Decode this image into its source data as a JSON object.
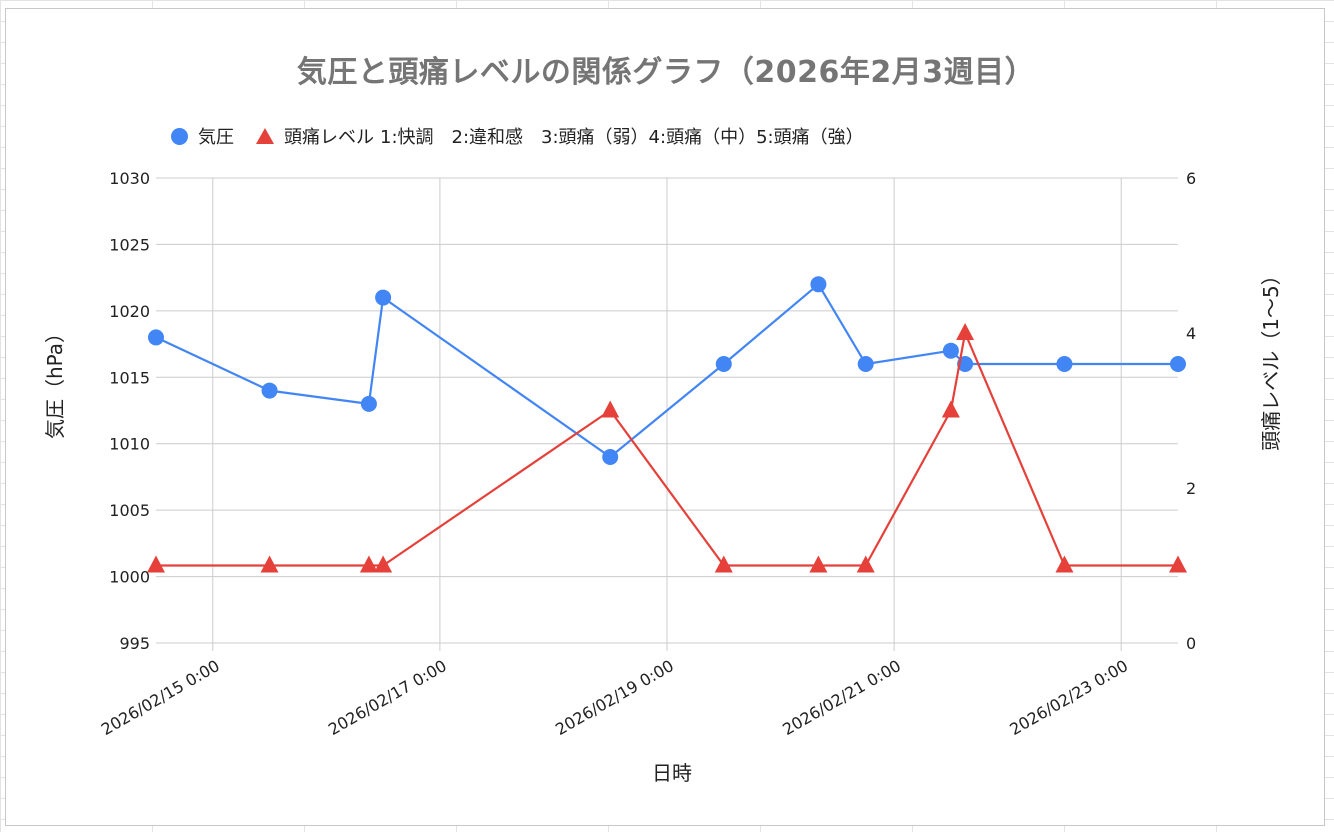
{
  "chart_data": {
    "type": "line",
    "title": "気圧と頭痛レベルの関係グラフ（2026年2月3週目）",
    "xlabel": "日時",
    "ylabel_left": "気圧（hPa）",
    "ylabel_right": "頭痛レベル（1〜5）",
    "legend_position": "top",
    "legend_note": "1:快調　2:違和感　3:頭痛（弱）4:頭痛（中）5:頭痛（強）",
    "x_tick_labels": [
      "2026/02/15 0:00",
      "2026/02/17 0:00",
      "2026/02/19 0:00",
      "2026/02/21 0:00",
      "2026/02/23 0:00"
    ],
    "x_tick_dates": [
      "2026-02-15T00:00",
      "2026-02-17T00:00",
      "2026-02-19T00:00",
      "2026-02-21T00:00",
      "2026-02-23T00:00"
    ],
    "x_range": [
      "2026-02-14T12:00",
      "2026-02-23T12:00"
    ],
    "ylim_left": [
      995,
      1030
    ],
    "yticks_left": [
      995,
      1000,
      1005,
      1010,
      1015,
      1020,
      1025,
      1030
    ],
    "ylim_right": [
      0,
      6
    ],
    "yticks_right": [
      0,
      2,
      4,
      6
    ],
    "grid": true,
    "series": [
      {
        "name": "気圧",
        "axis": "left",
        "marker": "circle",
        "color": "#4285f4",
        "x": [
          "2026-02-14T12:00",
          "2026-02-15T12:00",
          "2026-02-16T09:00",
          "2026-02-16T12:00",
          "2026-02-18T12:00",
          "2026-02-19T12:00",
          "2026-02-20T08:00",
          "2026-02-20T18:00",
          "2026-02-21T12:00",
          "2026-02-21T15:00",
          "2026-02-22T12:00",
          "2026-02-23T12:00"
        ],
        "values": [
          1018,
          1014,
          1013,
          1021,
          1009,
          1016,
          1022,
          1016,
          1017,
          1016,
          1016,
          1016
        ]
      },
      {
        "name": "頭痛レベル",
        "axis": "right",
        "marker": "triangle",
        "color": "#e5413a",
        "x": [
          "2026-02-14T12:00",
          "2026-02-15T12:00",
          "2026-02-16T09:00",
          "2026-02-16T12:00",
          "2026-02-18T12:00",
          "2026-02-19T12:00",
          "2026-02-20T08:00",
          "2026-02-20T18:00",
          "2026-02-21T12:00",
          "2026-02-21T15:00",
          "2026-02-22T12:00",
          "2026-02-23T12:00"
        ],
        "values": [
          1,
          1,
          1,
          1,
          3,
          1,
          1,
          1,
          3,
          4,
          1,
          1
        ]
      }
    ]
  }
}
